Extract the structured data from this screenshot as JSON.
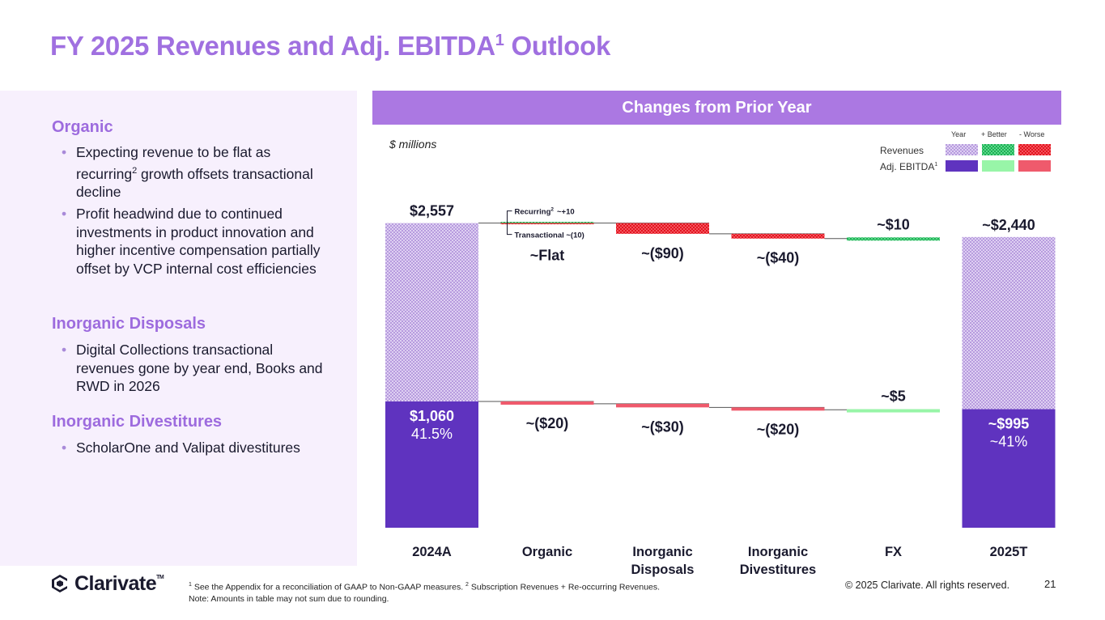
{
  "title": {
    "main": "FY 2025 Revenues and Adj. EBITDA",
    "sup": "1",
    "tail": " Outlook"
  },
  "left": {
    "organic": {
      "heading": "Organic",
      "bullet1_pre": "Expecting revenue to be flat as recurring",
      "bullet1_sup": "2",
      "bullet1_post": " growth offsets transactional decline",
      "bullet2": "Profit headwind due to continued investments in product innovation and higher incentive compensation partially offset by VCP internal cost efficiencies"
    },
    "disposals": {
      "heading": "Inorganic Disposals",
      "bullet1": "Digital Collections transactional revenues gone by year end, Books and RWD in 2026"
    },
    "divestitures": {
      "heading": "Inorganic Divestitures",
      "bullet1": "ScholarOne and Valipat divestitures"
    }
  },
  "banner": "Changes from Prior Year",
  "units": "$ millions",
  "legend": {
    "col_year": "Year",
    "col_better": "+ Better",
    "col_worse": "- Worse",
    "row_revenues": "Revenues",
    "row_ebitda": "Adj. EBITDA",
    "row_ebitda_sup": "1"
  },
  "colors": {
    "year_revenue": "#c9b3e8",
    "year_ebitda": "#5f33bf",
    "better_revenue": "#2ec76a",
    "better_ebitda": "#98f5a8",
    "worse_revenue": "#ee2b37",
    "worse_ebitda": "#ef5a6c",
    "accent": "#a070e0"
  },
  "chart_data": {
    "type": "waterfall",
    "units": "$ millions",
    "categories": [
      "2024A",
      "Organic",
      "Inorganic Disposals",
      "Inorganic Divestitures",
      "FX",
      "2025T"
    ],
    "series": [
      {
        "name": "Revenues",
        "values": [
          2557,
          0,
          -90,
          -40,
          10,
          2440
        ],
        "labels": [
          "$2,557",
          "~Flat",
          "~($90)",
          "~($40)",
          "~$10",
          "~$2,440"
        ]
      },
      {
        "name": "Adj. EBITDA",
        "values": [
          1060,
          -20,
          -30,
          -20,
          5,
          995
        ],
        "labels": [
          "$1,060",
          "~($20)",
          "~($30)",
          "~($20)",
          "~$5",
          "~$995"
        ],
        "margin_labels": [
          "41.5%",
          "",
          "",
          "",
          "",
          "~41%"
        ]
      }
    ],
    "organic_split": {
      "recurring_label": "Recurring",
      "recurring_sup": "2",
      "recurring_value": "~+10",
      "recurring_delta": 10,
      "transactional_label": "Transactional",
      "transactional_value": "~(10)",
      "transactional_delta": -10
    }
  },
  "footer": {
    "logo": "Clarivate",
    "logo_tm": "TM",
    "fn1_sup": "1",
    "fn1": " See the Appendix for a reconciliation of GAAP to Non-GAAP measures. ",
    "fn2_sup": "2",
    "fn2": " Subscription Revenues + Re-occurring Revenues.",
    "note": "Note: Amounts in table may not sum due to rounding.",
    "copyright": "© 2025 Clarivate. All rights reserved.",
    "page": "21"
  }
}
